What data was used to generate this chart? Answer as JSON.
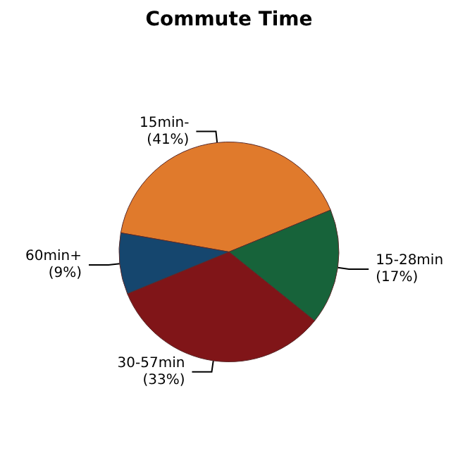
{
  "chart_data": {
    "type": "pie",
    "title": "Commute Time",
    "categories": [
      "15min-",
      "15-28min",
      "30-57min",
      "60min+"
    ],
    "values": [
      41,
      17,
      33,
      9
    ],
    "value_labels": [
      "(41%)",
      "(17%)",
      "(33%)",
      "(9%)"
    ],
    "colors": [
      "#e07a2c",
      "#17633a",
      "#801518",
      "#15466e"
    ],
    "legend": false
  }
}
